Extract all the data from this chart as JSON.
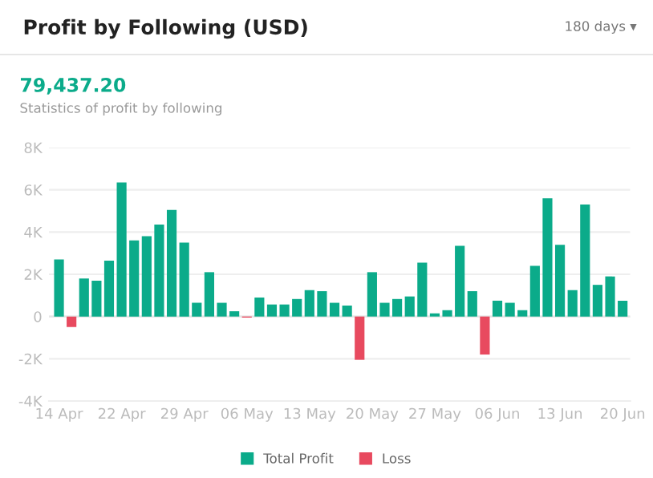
{
  "chart_data": {
    "type": "bar",
    "title": "Profit by Following (USD)",
    "annotations": [
      "180 days ▾",
      "79,437.20",
      "Statistics of profit by following"
    ],
    "categories": [
      "14 Apr",
      null,
      null,
      null,
      null,
      "22 Apr",
      null,
      null,
      null,
      null,
      "29 Apr",
      null,
      null,
      null,
      null,
      "06 May",
      null,
      null,
      null,
      null,
      "13 May",
      null,
      null,
      null,
      null,
      "20 May",
      null,
      null,
      null,
      null,
      "27 May",
      null,
      null,
      null,
      null,
      "06 Jun",
      null,
      null,
      null,
      null,
      "13 Jun",
      null,
      null,
      null,
      null,
      "20 Jun"
    ],
    "series": [
      {
        "name": "Total Profit",
        "color": "#0bab8a",
        "values": [
          2700,
          null,
          1800,
          1700,
          2650,
          6350,
          3600,
          3800,
          4350,
          5050,
          3500,
          650,
          2100,
          650,
          250,
          null,
          900,
          570,
          570,
          830,
          1250,
          1200,
          650,
          520,
          null,
          2100,
          650,
          830,
          950,
          2550,
          150,
          300,
          3350,
          1200,
          null,
          750,
          650,
          300,
          2400,
          5600,
          3400,
          1250,
          5300,
          1500,
          1900,
          750
        ]
      },
      {
        "name": "Loss",
        "color": "#e84a5f",
        "values": [
          null,
          -500,
          null,
          null,
          null,
          null,
          null,
          null,
          null,
          null,
          null,
          null,
          null,
          null,
          null,
          -50,
          null,
          null,
          null,
          null,
          null,
          null,
          null,
          null,
          -2050,
          null,
          null,
          null,
          null,
          null,
          null,
          null,
          null,
          null,
          -1800,
          null,
          null,
          null,
          null,
          null,
          null,
          null,
          null,
          null,
          null,
          null
        ]
      }
    ],
    "ylim": [
      -4000,
      8000
    ],
    "yticks": [
      {
        "value": -4000,
        "label": "-4K"
      },
      {
        "value": -2000,
        "label": "-2K"
      },
      {
        "value": 0,
        "label": "0"
      },
      {
        "value": 2000,
        "label": "2K"
      },
      {
        "value": 4000,
        "label": "4K"
      },
      {
        "value": 6000,
        "label": "6K"
      },
      {
        "value": 8000,
        "label": "8K"
      }
    ],
    "grid": "y",
    "legend": "bottom"
  }
}
